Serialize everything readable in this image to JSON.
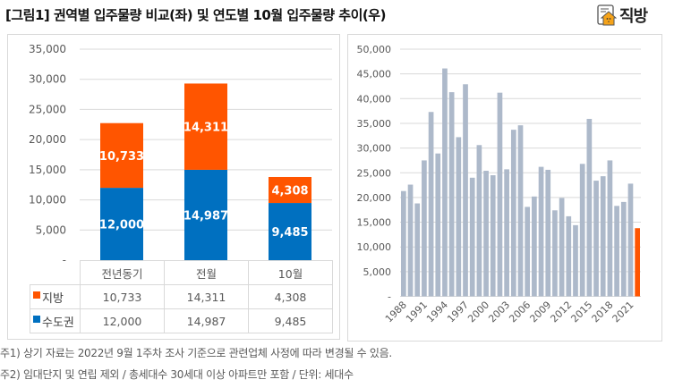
{
  "header": {
    "title": "[그림1] 권역별 입주물량 비교(좌) 및 연도별 10월 입주물량 추이(우)",
    "brand": "직방",
    "brand_icon": "house-logo-icon"
  },
  "colors": {
    "regional": "#FF5500",
    "capital": "#0070C0",
    "history": "#ADB9CA",
    "highlight": "#FF5500",
    "grid": "#D9D9D9",
    "axis_text": "#595959"
  },
  "chart_data": [
    {
      "type": "bar",
      "stacked": true,
      "title": "권역별 입주물량 비교",
      "categories": [
        "전년동기",
        "전월",
        "10월"
      ],
      "series": [
        {
          "name": "수도권",
          "values": [
            12000,
            14987,
            9485
          ],
          "labels": [
            "12,000",
            "14,987",
            "9,485"
          ]
        },
        {
          "name": "지방",
          "values": [
            10733,
            14311,
            4308
          ],
          "labels": [
            "10,733",
            "14,311",
            "4,308"
          ]
        }
      ],
      "yticks": [
        "-",
        "5,000",
        "10,000",
        "15,000",
        "20,000",
        "25,000",
        "30,000",
        "35,000"
      ],
      "ylim": [
        0,
        35000
      ],
      "grid": true,
      "legend": "data-table-below",
      "data_table": {
        "rows": [
          {
            "name": "지방",
            "values": [
              "10,733",
              "14,311",
              "4,308"
            ]
          },
          {
            "name": "수도권",
            "values": [
              "12,000",
              "14,987",
              "9,485"
            ]
          }
        ]
      }
    },
    {
      "type": "bar",
      "title": "연도별 10월 입주물량 추이",
      "x": [
        1988,
        1989,
        1990,
        1991,
        1992,
        1993,
        1994,
        1995,
        1996,
        1997,
        1998,
        1999,
        2000,
        2001,
        2002,
        2003,
        2004,
        2005,
        2006,
        2007,
        2008,
        2009,
        2010,
        2011,
        2012,
        2013,
        2014,
        2015,
        2016,
        2017,
        2018,
        2019,
        2020,
        2021,
        2022
      ],
      "values": [
        21300,
        22600,
        18800,
        27500,
        37300,
        28900,
        46100,
        41300,
        32200,
        42900,
        24000,
        30600,
        25400,
        24500,
        41200,
        25700,
        33700,
        34600,
        18100,
        20200,
        26200,
        25600,
        17400,
        19900,
        16200,
        14400,
        26800,
        35900,
        23400,
        24300,
        27500,
        18300,
        19100,
        22800,
        13793
      ],
      "highlight_index": 34,
      "xticks": [
        "1988",
        "1991",
        "1994",
        "1997",
        "2000",
        "2003",
        "2006",
        "2009",
        "2012",
        "2015",
        "2018",
        "2021"
      ],
      "yticks": [
        "-",
        "5,000",
        "10,000",
        "15,000",
        "20,000",
        "25,000",
        "30,000",
        "35,000",
        "40,000",
        "45,000",
        "50,000"
      ],
      "ylim": [
        0,
        50000
      ],
      "grid": true
    }
  ],
  "footnotes": [
    "주1) 상기 자료는 2022년 9월 1주차 조사 기준으로 관련업체 사정에 따라 변경될 수 있음.",
    "주2) 임대단지 및 연립 제외 / 총세대수 30세대 이상 아파트만 포함 / 단위: 세대수"
  ]
}
